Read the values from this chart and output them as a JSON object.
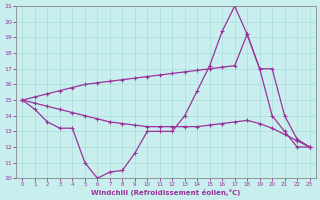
{
  "xlabel": "Windchill (Refroidissement éolien,°C)",
  "xlim": [
    -0.5,
    23.5
  ],
  "ylim": [
    10,
    21
  ],
  "xticks": [
    0,
    1,
    2,
    3,
    4,
    5,
    6,
    7,
    8,
    9,
    10,
    11,
    12,
    13,
    14,
    15,
    16,
    17,
    18,
    19,
    20,
    21,
    22,
    23
  ],
  "yticks": [
    10,
    11,
    12,
    13,
    14,
    15,
    16,
    17,
    18,
    19,
    20,
    21
  ],
  "bg_color": "#c8eeee",
  "line_color": "#993399",
  "grid_color": "#aadddd",
  "line1_x": [
    0,
    1,
    2,
    3,
    4,
    5,
    6,
    7,
    8,
    9,
    10,
    11,
    12,
    13,
    14,
    15,
    16,
    17,
    18,
    19,
    20,
    21,
    22,
    23
  ],
  "line1_y": [
    15.0,
    14.4,
    13.6,
    13.2,
    13.2,
    11.0,
    10.0,
    10.4,
    10.5,
    11.6,
    13.0,
    13.0,
    13.0,
    14.0,
    15.6,
    17.2,
    19.4,
    21.0,
    19.2,
    17.0,
    14.0,
    13.0,
    12.0,
    12.0
  ],
  "line2_x": [
    0,
    1,
    2,
    3,
    4,
    5,
    6,
    7,
    8,
    9,
    10,
    11,
    12,
    13,
    14,
    15,
    16,
    17,
    18,
    19,
    20,
    21,
    22,
    23
  ],
  "line2_y": [
    15.0,
    14.8,
    14.6,
    14.4,
    14.2,
    14.0,
    13.8,
    13.6,
    13.5,
    13.4,
    13.3,
    13.3,
    13.3,
    13.3,
    13.3,
    13.4,
    13.5,
    13.6,
    13.7,
    13.5,
    13.2,
    12.8,
    12.4,
    12.0
  ],
  "line3_x": [
    0,
    1,
    2,
    3,
    4,
    5,
    6,
    7,
    8,
    9,
    10,
    11,
    12,
    13,
    14,
    15,
    16,
    17,
    18,
    19,
    20,
    21,
    22,
    23
  ],
  "line3_y": [
    15.0,
    15.2,
    15.4,
    15.6,
    15.8,
    16.0,
    16.1,
    16.2,
    16.3,
    16.4,
    16.5,
    16.6,
    16.7,
    16.8,
    16.9,
    17.0,
    17.1,
    17.2,
    19.2,
    17.0,
    17.0,
    14.0,
    12.5,
    12.0
  ]
}
